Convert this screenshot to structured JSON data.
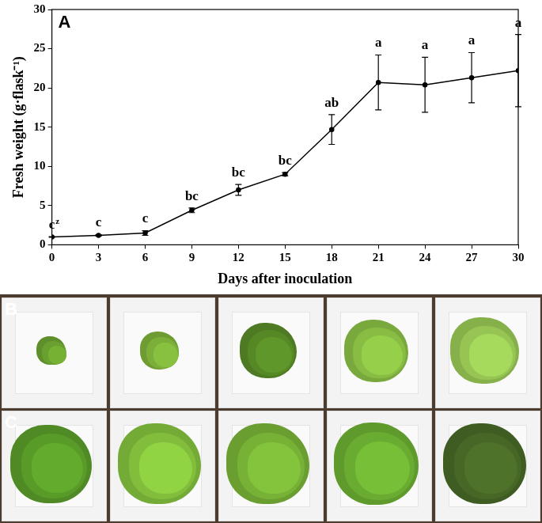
{
  "chart_data": {
    "type": "line",
    "panel": "A",
    "x": [
      0,
      3,
      6,
      9,
      12,
      15,
      18,
      21,
      24,
      27,
      30
    ],
    "values": [
      1.0,
      1.2,
      1.5,
      4.4,
      7.0,
      9.0,
      14.7,
      20.7,
      20.4,
      21.3,
      22.2
    ],
    "errors": [
      0.05,
      0.1,
      0.3,
      0.3,
      0.7,
      0.2,
      1.9,
      3.5,
      3.5,
      3.2,
      4.6
    ],
    "annotations": [
      {
        "x": 0,
        "text": "c",
        "superscript": "z"
      },
      {
        "x": 3,
        "text": "c"
      },
      {
        "x": 6,
        "text": "c"
      },
      {
        "x": 9,
        "text": "bc"
      },
      {
        "x": 12,
        "text": "bc"
      },
      {
        "x": 15,
        "text": "bc"
      },
      {
        "x": 18,
        "text": "ab"
      },
      {
        "x": 21,
        "text": "a"
      },
      {
        "x": 24,
        "text": "a"
      },
      {
        "x": 27,
        "text": "a"
      },
      {
        "x": 30,
        "text": "a"
      }
    ],
    "xlabel": "Days after inoculation",
    "ylabel": "Fresh weight (g·flask⁻¹)",
    "xlim": [
      0,
      30
    ],
    "xticks": [
      0,
      3,
      6,
      9,
      12,
      15,
      18,
      21,
      24,
      27,
      30
    ],
    "ylim": [
      0,
      30
    ],
    "yticks": [
      0,
      5,
      10,
      15,
      20,
      25,
      30
    ],
    "color": "#000000",
    "marker": "circle",
    "line_style": "solid",
    "grid": false
  },
  "photo_panels": [
    {
      "label": "B"
    },
    {
      "label": "C"
    }
  ]
}
